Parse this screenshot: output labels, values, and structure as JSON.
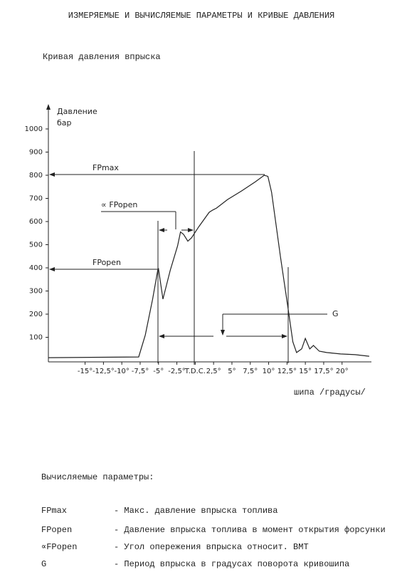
{
  "header": {
    "title": "ИЗМЕРЯЕМЫЕ И ВЫЧИСЛЯЕМЫЕ ПАРАМЕТРЫ И КРИВЫЕ ДАВЛЕНИЯ"
  },
  "chart_data": {
    "type": "line",
    "title": "Кривая давления впрыска",
    "ylabel": [
      "Давление",
      "бар"
    ],
    "xlabel": "шипа /градусы/",
    "x": [
      -20,
      -7.7,
      -6.8,
      -5.8,
      -5.1,
      -5,
      -4.4,
      -3.4,
      -2.4,
      -2,
      -1.6,
      -1,
      -0.5,
      0.5,
      1.9,
      2.4,
      2.9,
      4.4,
      6.3,
      8.2,
      9.4,
      9.9,
      10.4,
      11.6,
      12.6,
      13.3,
      13.8,
      14.5,
      15,
      15.6,
      16.1,
      16.9,
      17.9,
      19.8,
      21.8,
      23.7
    ],
    "values": [
      12,
      15,
      110,
      265,
      390,
      395,
      265,
      390,
      495,
      555,
      545,
      515,
      530,
      578,
      640,
      650,
      658,
      695,
      732,
      772,
      800,
      795,
      726,
      449,
      234,
      80,
      34,
      50,
      95,
      50,
      65,
      40,
      34,
      28,
      25,
      18
    ],
    "color": "#222222",
    "xlim": [
      -20,
      24
    ],
    "ylim": [
      0,
      1080
    ],
    "xticks": [
      {
        "value": -15,
        "label": "-15°"
      },
      {
        "value": -12.5,
        "label": "-12,5°"
      },
      {
        "value": -10,
        "label": "-10°"
      },
      {
        "value": -7.5,
        "label": "-7,5°"
      },
      {
        "value": -5,
        "label": "-5°"
      },
      {
        "value": -2.5,
        "label": "-2,5°"
      },
      {
        "value": 0,
        "label": "T.D.C."
      },
      {
        "value": 2.5,
        "label": "2,5°"
      },
      {
        "value": 5,
        "label": "5°"
      },
      {
        "value": 7.5,
        "label": "7,5°"
      },
      {
        "value": 10,
        "label": "10°"
      },
      {
        "value": 12.5,
        "label": "12,5°"
      },
      {
        "value": 15,
        "label": "15°"
      },
      {
        "value": 17.5,
        "label": "17,5°"
      },
      {
        "value": 20,
        "label": "20°"
      }
    ],
    "yticks": [
      100,
      200,
      300,
      400,
      500,
      600,
      700,
      800,
      900,
      1000
    ],
    "grid": false,
    "annotations": [
      "FPmax",
      "∝ FPopen",
      "FPopen",
      "G"
    ]
  },
  "parameters": {
    "title": "Вычисляемые параметры:",
    "rows": [
      [
        "FPmax",
        "- Макс. давление впрыска топлива"
      ],
      [
        "FPopen",
        "- Давление впрыска топлива в момент открытия форсунки"
      ],
      [
        "∝FPopen",
        "- Угол опережения впрыска относит. ВМТ"
      ],
      [
        "G",
        "- Период впрыска в градусах поворота кривошипа"
      ]
    ]
  }
}
